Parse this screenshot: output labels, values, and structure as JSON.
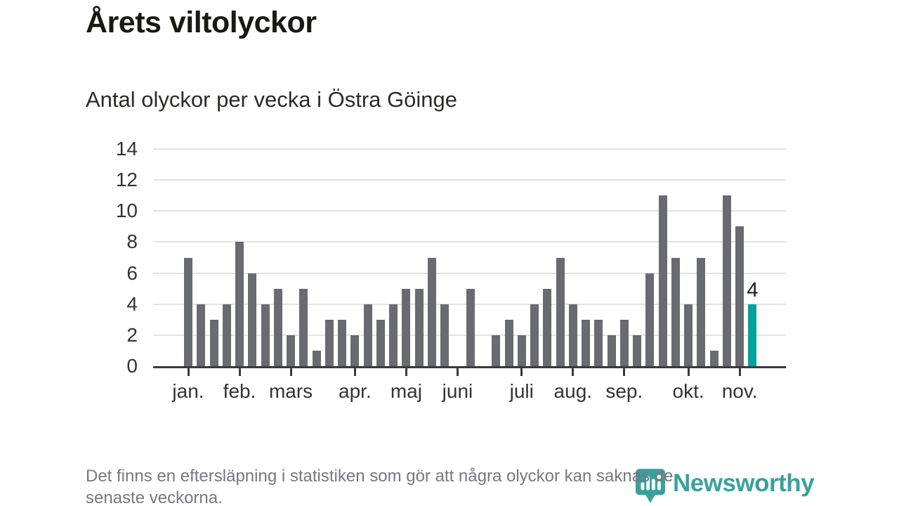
{
  "title": "Årets viltolyckor",
  "subtitle": "Antal olyckor per vecka i Östra Göinge",
  "footer": {
    "line1": "Det finns en eftersläpning i statistiken som gör att några olyckor kan saknas de",
    "line2": "senaste veckorna."
  },
  "logo": {
    "wordmark": "Newsworthy",
    "color": "#39a19b",
    "icon": "newsworthy-pin-barchart-icon"
  },
  "chart_data": {
    "type": "bar",
    "title": "Årets viltolyckor",
    "subtitle": "Antal olyckor per vecka i Östra Göinge",
    "x_unit": "vecka",
    "values": [
      7,
      4,
      3,
      4,
      8,
      6,
      4,
      5,
      2,
      5,
      1,
      3,
      3,
      2,
      4,
      3,
      4,
      5,
      5,
      7,
      4,
      0,
      5,
      0,
      2,
      3,
      2,
      4,
      5,
      7,
      4,
      3,
      3,
      2,
      3,
      2,
      6,
      11,
      7,
      4,
      7,
      1,
      11,
      9,
      4
    ],
    "highlight_index": 44,
    "highlight_label": "4",
    "bar_color": "#6a6a71",
    "highlight_color": "#00a39b",
    "gridline_color": "#e3e3e3",
    "axis_color": "#3a3a3c",
    "y_ticks": [
      0,
      2,
      4,
      6,
      8,
      10,
      12,
      14
    ],
    "ylim": [
      0,
      14
    ],
    "grid": true,
    "legend": false,
    "month_ticks": [
      {
        "label": "jan.",
        "index": 0
      },
      {
        "label": "feb.",
        "index": 4
      },
      {
        "label": "mars",
        "index": 8
      },
      {
        "label": "apr.",
        "index": 13
      },
      {
        "label": "maj",
        "index": 17
      },
      {
        "label": "juni",
        "index": 21
      },
      {
        "label": "juli",
        "index": 26
      },
      {
        "label": "aug.",
        "index": 30
      },
      {
        "label": "sep.",
        "index": 34
      },
      {
        "label": "okt.",
        "index": 39
      },
      {
        "label": "nov.",
        "index": 43
      }
    ]
  }
}
